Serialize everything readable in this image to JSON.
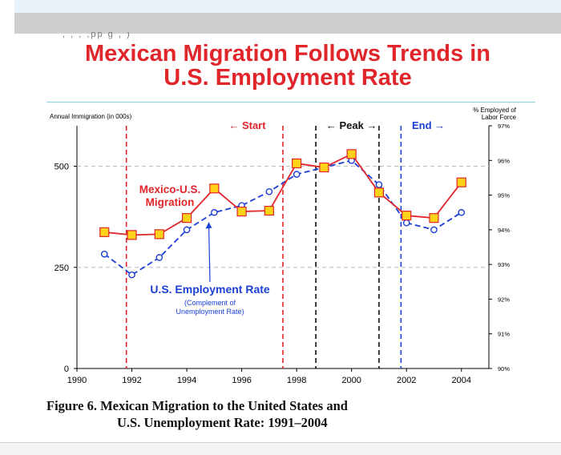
{
  "slide": {
    "header_cutoff": ", , , ,pp g , )",
    "title_line1": "Mexican Migration Follows Trends in",
    "title_line2": "U.S. Employment Rate",
    "caption_line1": "Figure 6.  Mexican Migration to the United States and",
    "caption_line2": "U.S. Unemployment Rate:  1991–2004"
  },
  "chart_data": {
    "type": "line",
    "ylabel_left": "Annual Immigration (in 000s)",
    "ylabel_right_line1": "% Employed of",
    "ylabel_right_line2": "Labor Force",
    "x_ticks": [
      "1990",
      "1992",
      "1994",
      "1996",
      "1998",
      "2000",
      "2002",
      "2004"
    ],
    "xlim": [
      1990,
      2005
    ],
    "y_left_ticks": [
      "0",
      "250",
      "500"
    ],
    "ylim_left": [
      0,
      600
    ],
    "y_right_ticks": [
      "90%",
      "91%",
      "92%",
      "93%",
      "94%",
      "95%",
      "96%",
      "97%"
    ],
    "ylim_right": [
      90,
      97
    ],
    "grid_dashed_at_left": [
      250,
      500
    ],
    "series": [
      {
        "name": "Mexico-U.S. Migration",
        "label_line1": "Mexico-U.S.",
        "label_line2": "Migration",
        "axis": "left",
        "color": "#e0252b",
        "marker_fill": "#ffd21a",
        "x": [
          1991,
          1992,
          1993,
          1994,
          1995,
          1996,
          1997,
          1998,
          1999,
          2000,
          2001,
          2002,
          2003,
          2004
        ],
        "values": [
          337,
          330,
          332,
          372,
          445,
          388,
          390,
          507,
          497,
          530,
          435,
          378,
          372,
          460
        ]
      },
      {
        "name": "U.S. Employment Rate",
        "label_line1": "U.S. Employment Rate",
        "label_line2": "(Complement of",
        "label_line3": "Unemployment Rate)",
        "axis": "right",
        "color": "#1c3fd6",
        "x": [
          1991,
          1992,
          1993,
          1994,
          1995,
          1996,
          1997,
          1998,
          1999,
          2000,
          2001,
          2002,
          2003,
          2004
        ],
        "values": [
          93.3,
          92.7,
          93.2,
          94.0,
          94.5,
          94.7,
          95.1,
          95.6,
          95.8,
          96.0,
          95.3,
          94.2,
          94.0,
          94.5
        ]
      }
    ],
    "vlines": [
      {
        "x": 1991.8,
        "color": "#e0252b"
      },
      {
        "x": 1997.5,
        "color": "#e0252b"
      },
      {
        "x": 1998.7,
        "color": "#111111"
      },
      {
        "x": 2001.0,
        "color": "#111111"
      },
      {
        "x": 2001.8,
        "color": "#1c3fd6"
      }
    ],
    "annotations": [
      {
        "text": "← Start",
        "color": "#e0252b"
      },
      {
        "text": "← Peak →",
        "color": "#111111"
      },
      {
        "text": "End →",
        "color": "#1c3fd6"
      }
    ]
  }
}
